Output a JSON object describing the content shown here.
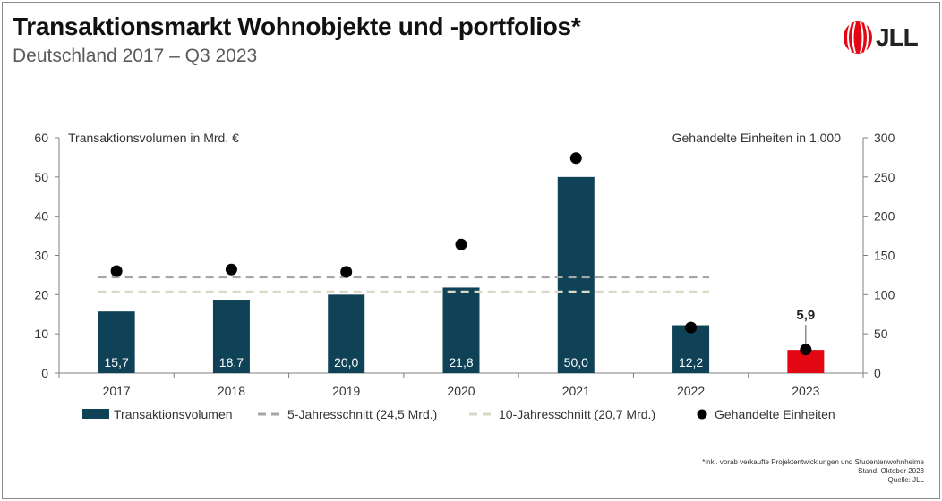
{
  "header": {
    "title": "Transaktionsmarkt Wohnobjekte und -portfolios*",
    "subtitle": "Deutschland 2017 – Q3 2023"
  },
  "logo": {
    "text": "JLL",
    "color": "#e30613"
  },
  "chart_data": {
    "type": "bar",
    "categories": [
      "2017",
      "2018",
      "2019",
      "2020",
      "2021",
      "2022",
      "2023"
    ],
    "series": [
      {
        "name": "Transaktionsvolumen",
        "type": "bar",
        "axis": "left",
        "values": [
          15.7,
          18.7,
          20.0,
          21.8,
          50.0,
          12.2,
          5.9
        ],
        "labels": [
          "15,7",
          "18,7",
          "20,0",
          "21,8",
          "50,0",
          "12,2",
          "5,9"
        ],
        "color": "#0f4257",
        "highlight_color": "#e30613",
        "highlight_index": 6
      },
      {
        "name": "5-Jahresschnitt (24,5 Mrd.)",
        "type": "line",
        "style": "dashed",
        "axis": "left",
        "value": 24.5,
        "color": "#a6a6a6"
      },
      {
        "name": "10-Jahresschnitt (20,7 Mrd.)",
        "type": "line",
        "style": "dashed",
        "axis": "left",
        "value": 20.7,
        "color": "#d9d9c8"
      },
      {
        "name": "Gehandelte Einheiten",
        "type": "scatter",
        "axis": "right",
        "values": [
          130,
          132,
          129,
          164,
          274,
          58,
          30
        ],
        "color": "#000000"
      }
    ],
    "ylabel_left": "Transaktionsvolumen in Mrd. €",
    "ylabel_right": "Gehandelte Einheiten in 1.000",
    "ylim_left": [
      0,
      60
    ],
    "ylim_right": [
      0,
      300
    ],
    "yticks_left": [
      "0",
      "10",
      "20",
      "30",
      "40",
      "50",
      "60"
    ],
    "yticks_right": [
      "0",
      "50",
      "100",
      "150",
      "200",
      "250",
      "300"
    ],
    "grid": false,
    "legend": "bottom"
  },
  "footnotes": {
    "note": "*inkl. vorab verkaufte Projektentwicklungen und Studentenwohnheime",
    "stand": "Stand: Oktober 2023",
    "quelle": "Quelle: JLL"
  }
}
